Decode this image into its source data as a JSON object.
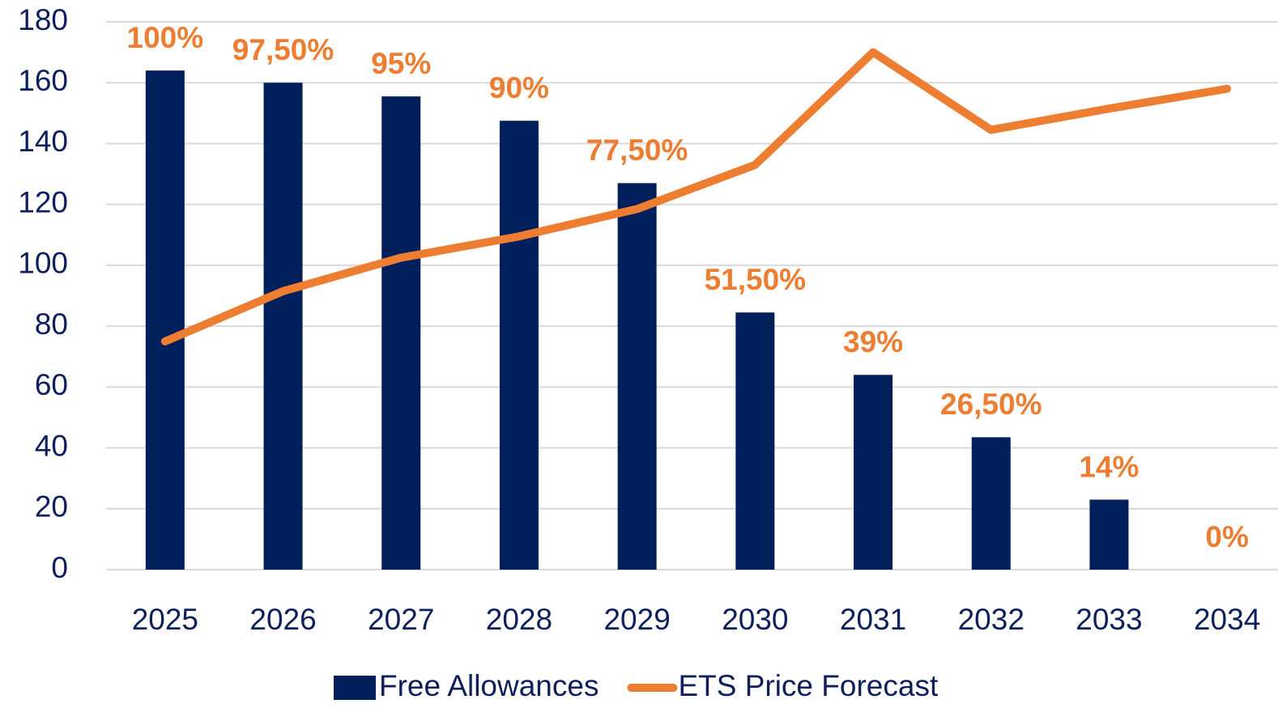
{
  "chart_data": {
    "type": "bar_line",
    "categories": [
      "2025",
      "2026",
      "2027",
      "2028",
      "2029",
      "2030",
      "2031",
      "2032",
      "2033",
      "2034"
    ],
    "series": [
      {
        "name": "Free Allowances",
        "type": "bar",
        "color": "#001f5b",
        "values": [
          164,
          160,
          155.5,
          147.5,
          127,
          84.5,
          64,
          43.5,
          23,
          0
        ]
      },
      {
        "name": "ETS Price Forecast",
        "type": "line",
        "color": "#ed7d31",
        "values": [
          75,
          91.5,
          102.5,
          109.5,
          118.5,
          133,
          170,
          144.5,
          151.5,
          158
        ]
      }
    ],
    "annotations": [
      "100%",
      "97,50%",
      "95%",
      "90%",
      "77,50%",
      "51,50%",
      "39%",
      "26,50%",
      "14%",
      "0%"
    ],
    "ylim": [
      0,
      180
    ],
    "yticks": [
      0,
      20,
      40,
      60,
      80,
      100,
      120,
      140,
      160,
      180
    ],
    "grid": true,
    "legend": "bottom"
  }
}
